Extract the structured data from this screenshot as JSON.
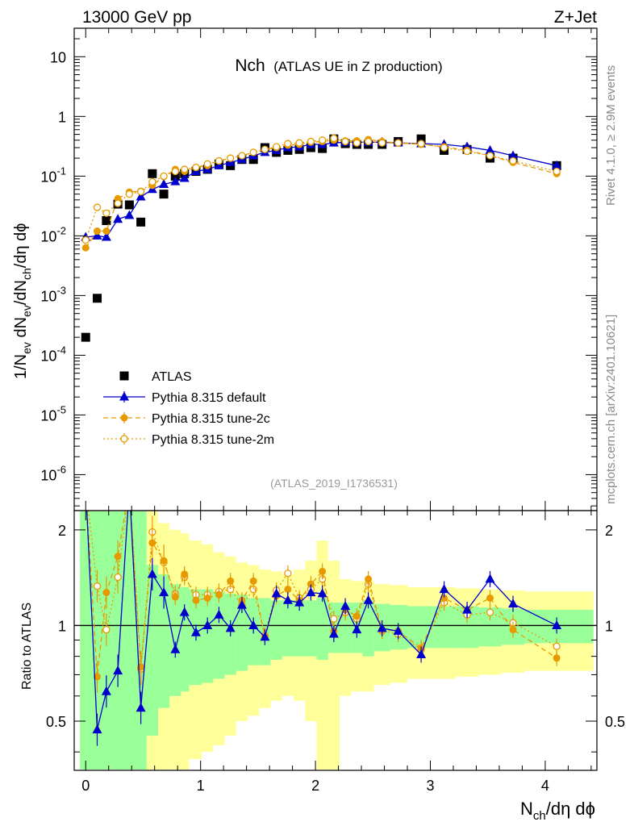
{
  "header": {
    "left": "13000 GeV pp",
    "right": "Z+Jet"
  },
  "side": {
    "rivet": "Rivet 4.1.0, ≥ 2.9M events",
    "mcplots": "mcplots.cern.ch [arXiv:2401.10621]"
  },
  "chart_data": {
    "type": "scatter",
    "title": "Nch",
    "subtitle": "(ATLAS UE in Z production)",
    "analysis_label": "(ATLAS_2019_I1736531)",
    "xlabel": "N_ch/dη dϕ",
    "ylabel_main": "1/N_ev dN_ev/dN_ch/dη dϕ",
    "ylabel_ratio": "Ratio to ATLAS",
    "xlim": [
      -0.1,
      4.45
    ],
    "ylim_main": [
      2.5e-07,
      30
    ],
    "ylim_ratio": [
      0.35,
      2.3
    ],
    "x_ticks": [
      "0",
      "1",
      "2",
      "3",
      "4"
    ],
    "y_ticks_main": [
      {
        "base": "10",
        "exp": "-6",
        "value": 1e-06
      },
      {
        "base": "10",
        "exp": "-5",
        "value": 1e-05
      },
      {
        "base": "10",
        "exp": "-4",
        "value": 0.0001
      },
      {
        "base": "10",
        "exp": "-3",
        "value": 0.001
      },
      {
        "base": "10",
        "exp": "-2",
        "value": 0.01
      },
      {
        "base": "10",
        "exp": "-1",
        "value": 0.1
      },
      {
        "base": "1",
        "exp": "",
        "value": 1
      },
      {
        "base": "10",
        "exp": "",
        "value": 10
      }
    ],
    "y_ticks_ratio": [
      "0.5",
      "1",
      "2"
    ],
    "legend": [
      {
        "label": "ATLAS",
        "color": "#000000",
        "marker": "square",
        "line": "none"
      },
      {
        "label": "Pythia 8.315 default",
        "color": "#0000cc",
        "marker": "triangle",
        "line": "solid"
      },
      {
        "label": "Pythia 8.315 tune-2c",
        "color": "#e69a00",
        "marker": "circle",
        "line": "dashed"
      },
      {
        "label": "Pythia 8.315 tune-2m",
        "color": "#e69a00",
        "marker": "open-circle",
        "line": "dotted"
      }
    ],
    "x": [
      0.0,
      0.1,
      0.18,
      0.28,
      0.38,
      0.48,
      0.58,
      0.68,
      0.78,
      0.86,
      0.96,
      1.06,
      1.16,
      1.26,
      1.36,
      1.46,
      1.56,
      1.66,
      1.76,
      1.86,
      1.96,
      2.06,
      2.16,
      2.26,
      2.36,
      2.46,
      2.58,
      2.72,
      2.92,
      3.12,
      3.32,
      3.52,
      3.72,
      4.1
    ],
    "series": [
      {
        "name": "ATLAS",
        "values": [
          0.0002,
          0.0009,
          0.018,
          0.034,
          0.033,
          0.017,
          0.11,
          0.05,
          0.1,
          0.11,
          0.12,
          0.13,
          0.16,
          0.15,
          0.19,
          0.19,
          0.3,
          0.25,
          0.27,
          0.28,
          0.3,
          0.29,
          0.42,
          0.35,
          0.34,
          0.34,
          0.34,
          0.38,
          0.42,
          0.27,
          0.28,
          0.2,
          0.2,
          0.15
        ]
      },
      {
        "name": "Pythia 8.315 default",
        "values": [
          0.0095,
          0.01,
          0.0095,
          0.019,
          0.022,
          0.045,
          0.06,
          0.073,
          0.081,
          0.092,
          0.12,
          0.13,
          0.15,
          0.17,
          0.19,
          0.22,
          0.25,
          0.27,
          0.3,
          0.31,
          0.34,
          0.34,
          0.36,
          0.37,
          0.37,
          0.37,
          0.37,
          0.36,
          0.35,
          0.34,
          0.31,
          0.27,
          0.22,
          0.15
        ]
      },
      {
        "name": "Pythia 8.315 tune-2c",
        "values": [
          0.0063,
          0.012,
          0.012,
          0.042,
          0.054,
          0.056,
          0.07,
          0.098,
          0.13,
          0.12,
          0.14,
          0.15,
          0.18,
          0.2,
          0.22,
          0.25,
          0.28,
          0.3,
          0.33,
          0.34,
          0.37,
          0.38,
          0.4,
          0.39,
          0.39,
          0.41,
          0.38,
          0.36,
          0.34,
          0.31,
          0.27,
          0.22,
          0.17,
          0.11
        ]
      },
      {
        "name": "Pythia 8.315 tune-2m",
        "values": [
          0.0085,
          0.03,
          0.024,
          0.035,
          0.05,
          0.055,
          0.08,
          0.1,
          0.12,
          0.13,
          0.14,
          0.16,
          0.18,
          0.2,
          0.22,
          0.25,
          0.28,
          0.31,
          0.35,
          0.36,
          0.38,
          0.4,
          0.43,
          0.38,
          0.36,
          0.38,
          0.36,
          0.36,
          0.35,
          0.3,
          0.26,
          0.22,
          0.18,
          0.12
        ]
      }
    ],
    "ratio_series": [
      {
        "name": "Pythia 8.315 default",
        "values": [
          2.3,
          0.47,
          0.62,
          0.72,
          2.3,
          0.55,
          1.45,
          1.27,
          0.84,
          1.1,
          0.95,
          1.0,
          1.08,
          0.98,
          1.16,
          1.0,
          0.92,
          1.26,
          1.2,
          1.18,
          1.27,
          1.26,
          0.94,
          1.15,
          0.97,
          1.2,
          0.98,
          0.96,
          0.81,
          1.3,
          1.12,
          1.4,
          1.17,
          1.0
        ]
      },
      {
        "name": "Pythia 8.315 tune-2c",
        "values": [
          2.3,
          0.69,
          1.27,
          1.65,
          2.3,
          0.74,
          1.82,
          1.6,
          1.23,
          1.45,
          1.2,
          1.22,
          1.25,
          1.38,
          1.2,
          1.38,
          0.92,
          1.24,
          1.3,
          1.2,
          1.35,
          1.48,
          0.96,
          1.12,
          1.07,
          1.4,
          0.97,
          0.96,
          0.85,
          1.22,
          1.12,
          1.22,
          0.97,
          0.79
        ]
      },
      {
        "name": "Pythia 8.315 tune-2m",
        "values": [
          2.3,
          1.33,
          0.97,
          1.42,
          2.3,
          0.73,
          1.97,
          1.58,
          1.26,
          1.42,
          1.25,
          1.25,
          1.28,
          1.3,
          1.16,
          1.3,
          0.93,
          1.29,
          1.46,
          1.22,
          1.3,
          1.4,
          1.05,
          1.1,
          1.05,
          1.35,
          0.96,
          0.94,
          0.84,
          1.18,
          1.08,
          1.1,
          1.02,
          0.86
        ]
      }
    ],
    "uncertainty_bands": {
      "x_edges": [
        -0.05,
        0.05,
        0.15,
        0.22,
        0.33,
        0.43,
        0.53,
        0.63,
        0.73,
        0.83,
        0.9,
        1.01,
        1.11,
        1.21,
        1.31,
        1.41,
        1.51,
        1.61,
        1.71,
        1.81,
        1.91,
        2.01,
        2.11,
        2.21,
        2.31,
        2.41,
        2.51,
        2.65,
        2.8,
        3.02,
        3.22,
        3.42,
        3.62,
        3.82,
        4.42
      ],
      "stat": [
        [
          0.3,
          2.3
        ],
        [
          0.3,
          2.3
        ],
        [
          0.3,
          2.3
        ],
        [
          0.3,
          2.3
        ],
        [
          0.3,
          2.3
        ],
        [
          0.3,
          2.3
        ],
        [
          0.45,
          1.55
        ],
        [
          0.55,
          1.45
        ],
        [
          0.6,
          1.35
        ],
        [
          0.62,
          1.32
        ],
        [
          0.65,
          1.3
        ],
        [
          0.66,
          1.3
        ],
        [
          0.68,
          1.28
        ],
        [
          0.7,
          1.26
        ],
        [
          0.72,
          1.25
        ],
        [
          0.75,
          1.22
        ],
        [
          0.75,
          1.22
        ],
        [
          0.78,
          1.2
        ],
        [
          0.8,
          1.2
        ],
        [
          0.8,
          1.2
        ],
        [
          0.8,
          1.2
        ],
        [
          0.78,
          1.22
        ],
        [
          0.82,
          1.18
        ],
        [
          0.82,
          1.18
        ],
        [
          0.82,
          1.18
        ],
        [
          0.8,
          1.2
        ],
        [
          0.83,
          1.17
        ],
        [
          0.84,
          1.16
        ],
        [
          0.85,
          1.15
        ],
        [
          0.85,
          1.15
        ],
        [
          0.85,
          1.15
        ],
        [
          0.86,
          1.14
        ],
        [
          0.87,
          1.13
        ],
        [
          0.88,
          1.12
        ]
      ],
      "total": [
        [
          0.3,
          2.3
        ],
        [
          0.3,
          2.3
        ],
        [
          0.3,
          2.3
        ],
        [
          0.3,
          2.3
        ],
        [
          0.3,
          2.3
        ],
        [
          0.3,
          2.3
        ],
        [
          0.3,
          2.3
        ],
        [
          0.3,
          2.1
        ],
        [
          0.32,
          2.0
        ],
        [
          0.35,
          1.95
        ],
        [
          0.38,
          1.85
        ],
        [
          0.4,
          1.8
        ],
        [
          0.42,
          1.7
        ],
        [
          0.45,
          1.65
        ],
        [
          0.5,
          1.58
        ],
        [
          0.52,
          1.55
        ],
        [
          0.55,
          1.5
        ],
        [
          0.58,
          1.48
        ],
        [
          0.6,
          1.45
        ],
        [
          0.58,
          1.5
        ],
        [
          0.5,
          1.6
        ],
        [
          0.3,
          1.85
        ],
        [
          0.3,
          1.6
        ],
        [
          0.6,
          1.4
        ],
        [
          0.62,
          1.38
        ],
        [
          0.62,
          1.38
        ],
        [
          0.65,
          1.35
        ],
        [
          0.66,
          1.34
        ],
        [
          0.68,
          1.32
        ],
        [
          0.68,
          1.32
        ],
        [
          0.69,
          1.31
        ],
        [
          0.7,
          1.3
        ],
        [
          0.71,
          1.29
        ],
        [
          0.72,
          1.28
        ]
      ]
    }
  }
}
